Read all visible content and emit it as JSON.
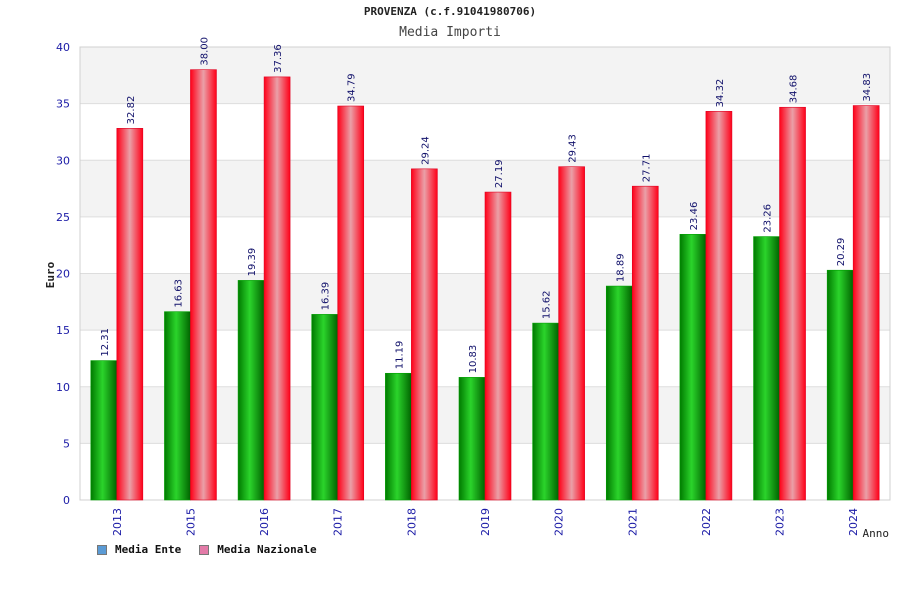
{
  "chart_data": {
    "type": "bar",
    "title": "PROVENZA (c.f.91041980706)",
    "subtitle": "Media Importi",
    "xlabel": "Anno",
    "ylabel": "Euro",
    "ylim": [
      0,
      40
    ],
    "yticks": [
      "0",
      "5",
      "10",
      "15",
      "20",
      "25",
      "30",
      "35",
      "40"
    ],
    "categories": [
      "2013",
      "2015",
      "2016",
      "2017",
      "2018",
      "2019",
      "2020",
      "2021",
      "2022",
      "2023",
      "2024"
    ],
    "series": [
      {
        "name": "Media Ente",
        "values": [
          12.31,
          16.63,
          19.39,
          16.39,
          11.19,
          10.83,
          15.62,
          18.89,
          23.46,
          23.26,
          20.29
        ],
        "labels": [
          "12.31",
          "16.63",
          "19.39",
          "16.39",
          "11.19",
          "10.83",
          "15.62",
          "18.89",
          "23.46",
          "23.26",
          "20.29"
        ],
        "color": "#00a000",
        "legend_color": "#5b9bd5"
      },
      {
        "name": "Media Nazionale",
        "values": [
          32.82,
          38.0,
          37.36,
          34.79,
          29.24,
          27.19,
          29.43,
          27.71,
          34.32,
          34.68,
          34.83
        ],
        "labels": [
          "32.82",
          "38.00",
          "37.36",
          "34.79",
          "29.24",
          "27.19",
          "29.43",
          "27.71",
          "34.32",
          "34.68",
          "34.83"
        ],
        "color": "#e00020",
        "legend_color": "#e37ba8"
      }
    ],
    "grid": true,
    "legend_position": "bottom-left"
  }
}
